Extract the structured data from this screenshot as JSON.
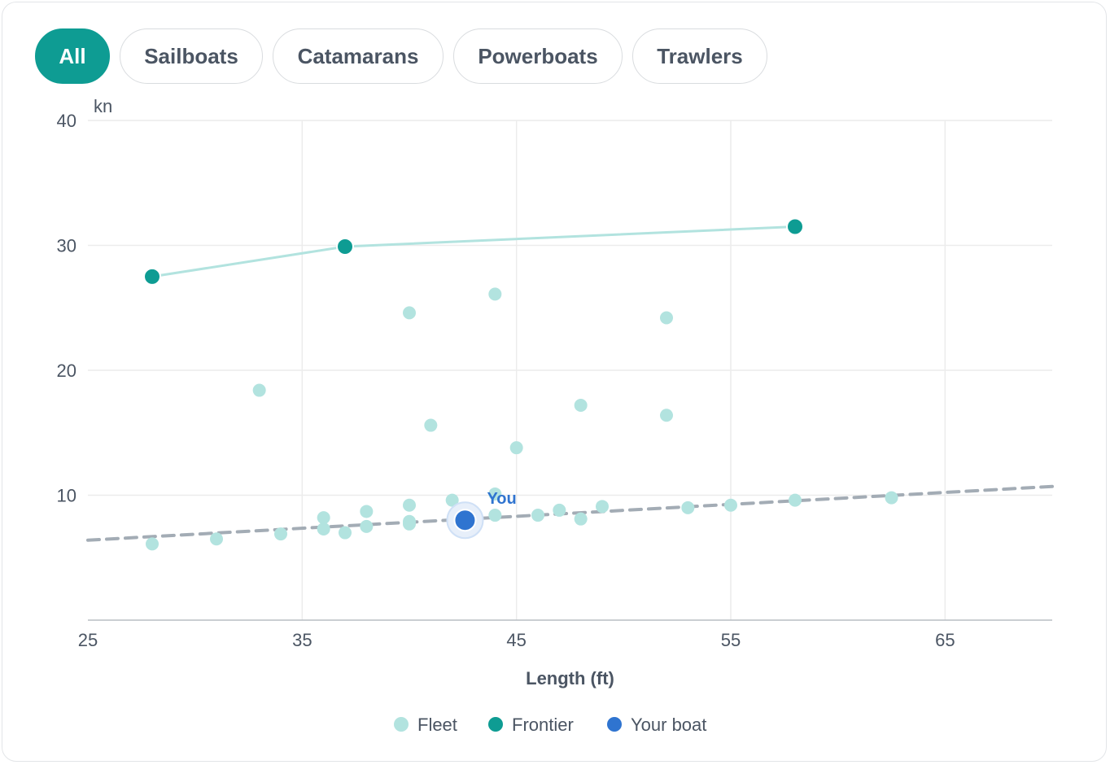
{
  "filters": [
    {
      "label": "All",
      "active": true
    },
    {
      "label": "Sailboats",
      "active": false
    },
    {
      "label": "Catamarans",
      "active": false
    },
    {
      "label": "Powerboats",
      "active": false
    },
    {
      "label": "Trawlers",
      "active": false
    }
  ],
  "colors": {
    "accent": "#0e9c93",
    "fleet": "#b2e3df",
    "frontier": "#0e9c93",
    "your_boat": "#2f74d0",
    "trend": "#a3acb5",
    "grid": "#ececec"
  },
  "chart_data": {
    "type": "scatter",
    "xlabel": "Length (ft)",
    "ylabel": "kn",
    "xlim": [
      25,
      70
    ],
    "ylim": [
      0,
      40
    ],
    "x_ticks": [
      25,
      35,
      45,
      55,
      65
    ],
    "y_ticks": [
      10,
      20,
      30,
      40
    ],
    "grid": true,
    "legend_position": "bottom",
    "series": [
      {
        "name": "Fleet",
        "points": [
          [
            28,
            6.1
          ],
          [
            31,
            6.5
          ],
          [
            33,
            18.4
          ],
          [
            34,
            6.9
          ],
          [
            36,
            8.2
          ],
          [
            36,
            7.3
          ],
          [
            37,
            7.0
          ],
          [
            38,
            8.7
          ],
          [
            38,
            7.5
          ],
          [
            40,
            24.6
          ],
          [
            40,
            9.2
          ],
          [
            40,
            7.9
          ],
          [
            40,
            7.7
          ],
          [
            41,
            15.6
          ],
          [
            42,
            9.6
          ],
          [
            44,
            26.1
          ],
          [
            44,
            10.1
          ],
          [
            44,
            8.4
          ],
          [
            45,
            13.8
          ],
          [
            46,
            8.4
          ],
          [
            47,
            8.8
          ],
          [
            48,
            17.2
          ],
          [
            48,
            8.1
          ],
          [
            49,
            9.1
          ],
          [
            52,
            24.2
          ],
          [
            52,
            16.4
          ],
          [
            53,
            9.0
          ],
          [
            55,
            9.2
          ],
          [
            58,
            9.6
          ],
          [
            62.5,
            9.8
          ]
        ]
      },
      {
        "name": "Frontier",
        "points": [
          [
            28,
            27.5
          ],
          [
            37,
            29.9
          ],
          [
            58,
            31.5
          ]
        ]
      },
      {
        "name": "Your boat",
        "points": [
          [
            42.6,
            8.0
          ]
        ],
        "annotation": "You"
      }
    ],
    "trend_line": {
      "style": "dashed",
      "from": [
        25,
        6.4
      ],
      "to": [
        70,
        10.7
      ]
    }
  }
}
